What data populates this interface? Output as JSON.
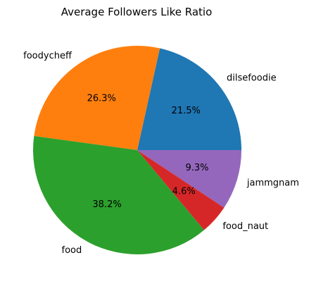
{
  "chart_data": {
    "type": "pie",
    "title": "Average Followers Like Ratio",
    "labels": [
      "dilsefoodie",
      "foodycheff",
      "food",
      "food_naut",
      "jammgnam"
    ],
    "values": [
      21.5,
      26.3,
      38.2,
      4.6,
      9.3
    ],
    "percent_labels": [
      "21.5%",
      "26.3%",
      "38.2%",
      "4.6%",
      "9.3%"
    ],
    "colors": [
      "#1f77b4",
      "#ff7f0e",
      "#2ca02c",
      "#d62728",
      "#9467bd"
    ],
    "start_angle_deg": 0,
    "direction": "counterclockwise",
    "legend": "none"
  }
}
